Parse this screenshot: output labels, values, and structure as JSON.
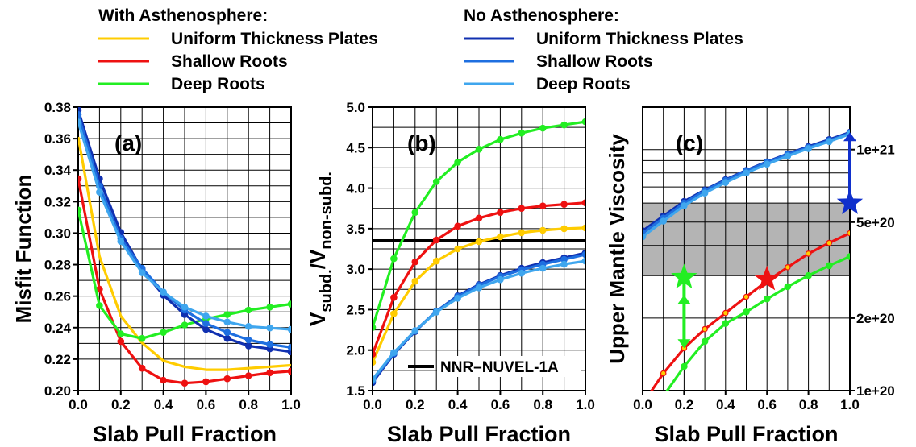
{
  "legend": {
    "with_title": "With Asthenosphere:",
    "no_title": "No Asthenosphere:",
    "with_items": [
      {
        "label": "Uniform Thickness Plates",
        "color": "#ffcc00"
      },
      {
        "label": "Shallow Roots",
        "color": "#ee1111"
      },
      {
        "label": "Deep Roots",
        "color": "#22ee22"
      }
    ],
    "no_items": [
      {
        "label": "Uniform Thickness Plates",
        "color": "#1030b0"
      },
      {
        "label": "Shallow Roots",
        "color": "#1e6fe0"
      },
      {
        "label": "Deep Roots",
        "color": "#3fa6ee"
      }
    ]
  },
  "chart_data": [
    {
      "type": "line",
      "panel_label": "(a)",
      "xlabel": "Slab Pull Fraction",
      "ylabel": "Misfit Function",
      "xlim": [
        0,
        1
      ],
      "ylim": [
        0.2,
        0.39
      ],
      "xticks": [
        "0.0",
        "0.2",
        "0.4",
        "0.6",
        "0.8",
        "1.0"
      ],
      "yticks": [
        "0.20",
        "0.22",
        "0.24",
        "0.26",
        "0.28",
        "0.30",
        "0.32",
        "0.34",
        "0.36",
        "0.38"
      ],
      "x": [
        0.0,
        0.1,
        0.2,
        0.3,
        0.4,
        0.5,
        0.6,
        0.7,
        0.8,
        0.9,
        1.0
      ],
      "series": [
        {
          "name": "Uniform Thickness Plates (With Asthenosphere)",
          "color": "#ffcc00",
          "markers": false,
          "values": [
            0.37,
            0.29,
            0.25,
            0.232,
            0.22,
            0.216,
            0.214,
            0.214,
            0.215,
            0.216,
            0.217
          ]
        },
        {
          "name": "Shallow Roots (With Asthenosphere)",
          "color": "#ee1111",
          "markers": true,
          "values": [
            0.342,
            0.268,
            0.233,
            0.215,
            0.207,
            0.205,
            0.206,
            0.208,
            0.21,
            0.212,
            0.213
          ]
        },
        {
          "name": "Deep Roots (With Asthenosphere)",
          "color": "#22ee22",
          "markers": true,
          "values": [
            0.321,
            0.257,
            0.238,
            0.235,
            0.239,
            0.244,
            0.248,
            0.251,
            0.254,
            0.256,
            0.258
          ]
        },
        {
          "name": "Uniform Thickness Plates (No Asthenosphere)",
          "color": "#1030b0",
          "markers": true,
          "values": [
            0.388,
            0.342,
            0.306,
            0.281,
            0.264,
            0.251,
            0.241,
            0.235,
            0.23,
            0.228,
            0.226
          ]
        },
        {
          "name": "Shallow Roots (No Asthenosphere)",
          "color": "#1e6fe0",
          "markers": true,
          "values": [
            0.385,
            0.337,
            0.302,
            0.282,
            0.266,
            0.254,
            0.245,
            0.239,
            0.234,
            0.231,
            0.229
          ]
        },
        {
          "name": "Deep Roots (No Asthenosphere)",
          "color": "#3fa6ee",
          "markers": true,
          "values": [
            0.38,
            0.333,
            0.3,
            0.279,
            0.266,
            0.256,
            0.25,
            0.246,
            0.243,
            0.242,
            0.241
          ]
        }
      ]
    },
    {
      "type": "line",
      "panel_label": "(b)",
      "xlabel": "Slab Pull Fraction",
      "ylabel_main": "V",
      "ylabel_sub1": "subd.",
      "ylabel_mid": "/V",
      "ylabel_sub2": "non-subd.",
      "xlim": [
        0,
        1
      ],
      "ylim": [
        1.5,
        5.0
      ],
      "xticks": [
        "0.0",
        "0.2",
        "0.4",
        "0.6",
        "0.8",
        "1.0"
      ],
      "yticks": [
        "1.5",
        "2.0",
        "2.5",
        "3.0",
        "3.5",
        "4.0",
        "4.5",
        "5.0"
      ],
      "reference_line": {
        "value": 3.35,
        "label": "NNR–NUVEL-1A"
      },
      "x": [
        0.0,
        0.1,
        0.2,
        0.3,
        0.4,
        0.5,
        0.6,
        0.7,
        0.8,
        0.9,
        1.0
      ],
      "series": [
        {
          "name": "Uniform Thickness Plates (With Asthenosphere)",
          "color": "#ffcc00",
          "markers": true,
          "values": [
            1.85,
            2.45,
            2.85,
            3.1,
            3.25,
            3.34,
            3.4,
            3.45,
            3.48,
            3.5,
            3.51
          ]
        },
        {
          "name": "Shallow Roots (With Asthenosphere)",
          "color": "#ee1111",
          "markers": true,
          "values": [
            1.95,
            2.65,
            3.09,
            3.36,
            3.53,
            3.63,
            3.7,
            3.75,
            3.78,
            3.8,
            3.82
          ]
        },
        {
          "name": "Deep Roots (With Asthenosphere)",
          "color": "#22ee22",
          "markers": true,
          "values": [
            2.28,
            3.13,
            3.7,
            4.08,
            4.32,
            4.48,
            4.6,
            4.68,
            4.74,
            4.78,
            4.82
          ]
        },
        {
          "name": "Uniform Thickness Plates (No Asthenosphere)",
          "color": "#1030b0",
          "markers": true,
          "values": [
            1.6,
            1.95,
            2.23,
            2.48,
            2.67,
            2.81,
            2.92,
            3.01,
            3.08,
            3.14,
            3.2
          ]
        },
        {
          "name": "Shallow Roots (No Asthenosphere)",
          "color": "#1e6fe0",
          "markers": true,
          "values": [
            1.62,
            1.96,
            2.24,
            2.48,
            2.66,
            2.8,
            2.91,
            2.99,
            3.06,
            3.12,
            3.18
          ]
        },
        {
          "name": "Deep Roots (No Asthenosphere)",
          "color": "#3fa6ee",
          "markers": true,
          "values": [
            1.64,
            1.97,
            2.24,
            2.47,
            2.64,
            2.77,
            2.87,
            2.95,
            3.01,
            3.06,
            3.1
          ]
        }
      ]
    },
    {
      "type": "line",
      "panel_label": "(c)",
      "xlabel": "Slab Pull Fraction",
      "ylabel": "Upper Mantle Viscosity",
      "xlim": [
        0,
        1
      ],
      "ylim": [
        1e+20,
        1.5e+21
      ],
      "yscale": "log",
      "xticks": [
        "0.0",
        "0.2",
        "0.4",
        "0.6",
        "0.8",
        "1.0"
      ],
      "yticks": [
        {
          "value": 1e+20,
          "label": "1e+20"
        },
        {
          "value": 2e+20,
          "label": "2e+20"
        },
        {
          "value": 5e+20,
          "label": "5e+20"
        },
        {
          "value": 1e+21,
          "label": "1e+21"
        }
      ],
      "shaded_band": [
        3e+20,
        6e+20
      ],
      "x": [
        0.0,
        0.1,
        0.2,
        0.3,
        0.4,
        0.5,
        0.6,
        0.7,
        0.8,
        0.9,
        1.0
      ],
      "series": [
        {
          "name": "Shallow Roots (With Asthenosphere)",
          "color": "#ee1111",
          "markers": true,
          "marker_fill": "#ffcc00",
          "values": [
            8.8e+19,
            1.18e+20,
            1.5e+20,
            1.8e+20,
            2.1e+20,
            2.45e+20,
            2.85e+20,
            3.25e+20,
            3.7e+20,
            4.1e+20,
            4.5e+20
          ]
        },
        {
          "name": "Deep Roots (With Asthenosphere)",
          "color": "#22ee22",
          "markers": true,
          "values": [
            7.5e+19,
            9.5e+19,
            1.26e+20,
            1.6e+20,
            1.9e+20,
            2.12e+20,
            2.4e+20,
            2.7e+20,
            3e+20,
            3.3e+20,
            3.6e+20
          ]
        },
        {
          "name": "Uniform Thickness Plates (No Asthenosphere)",
          "color": "#1030b0",
          "markers": true,
          "values": [
            4.6e+20,
            5.3e+20,
            6.1e+20,
            6.8e+20,
            7.5e+20,
            8.2e+20,
            8.9e+20,
            9.6e+20,
            1.03e+21,
            1.1e+21,
            1.18e+21
          ]
        },
        {
          "name": "Shallow Roots (No Asthenosphere)",
          "color": "#1e6fe0",
          "markers": true,
          "values": [
            4.5e+20,
            5.2e+20,
            6e+20,
            6.75e+20,
            7.45e+20,
            8.15e+20,
            8.85e+20,
            9.55e+20,
            1.02e+21,
            1.09e+21,
            1.17e+21
          ]
        },
        {
          "name": "Deep Roots (No Asthenosphere)",
          "color": "#3fa6ee",
          "markers": true,
          "values": [
            4.35e+20,
            5.05e+20,
            5.85e+20,
            6.6e+20,
            7.3e+20,
            8e+20,
            8.7e+20,
            9.4e+20,
            1.01e+21,
            1.08e+21,
            1.16e+21
          ]
        }
      ],
      "annotations": [
        {
          "kind": "star",
          "color": "#22ee22",
          "x": 0.2,
          "y": 2.95e+20
        },
        {
          "kind": "star",
          "color": "#ee1111",
          "x": 0.6,
          "y": 2.9e+20
        },
        {
          "kind": "star",
          "color": "#1030cc",
          "x": 1.0,
          "y": 6e+20
        },
        {
          "kind": "arrow",
          "color": "#22ee22",
          "x": 0.2,
          "from": 2.95e+20,
          "to": 1.5e+20
        },
        {
          "kind": "arrow",
          "color": "#1030cc",
          "x": 1.0,
          "from": 6e+20,
          "to": 1.18e+21
        }
      ]
    }
  ]
}
